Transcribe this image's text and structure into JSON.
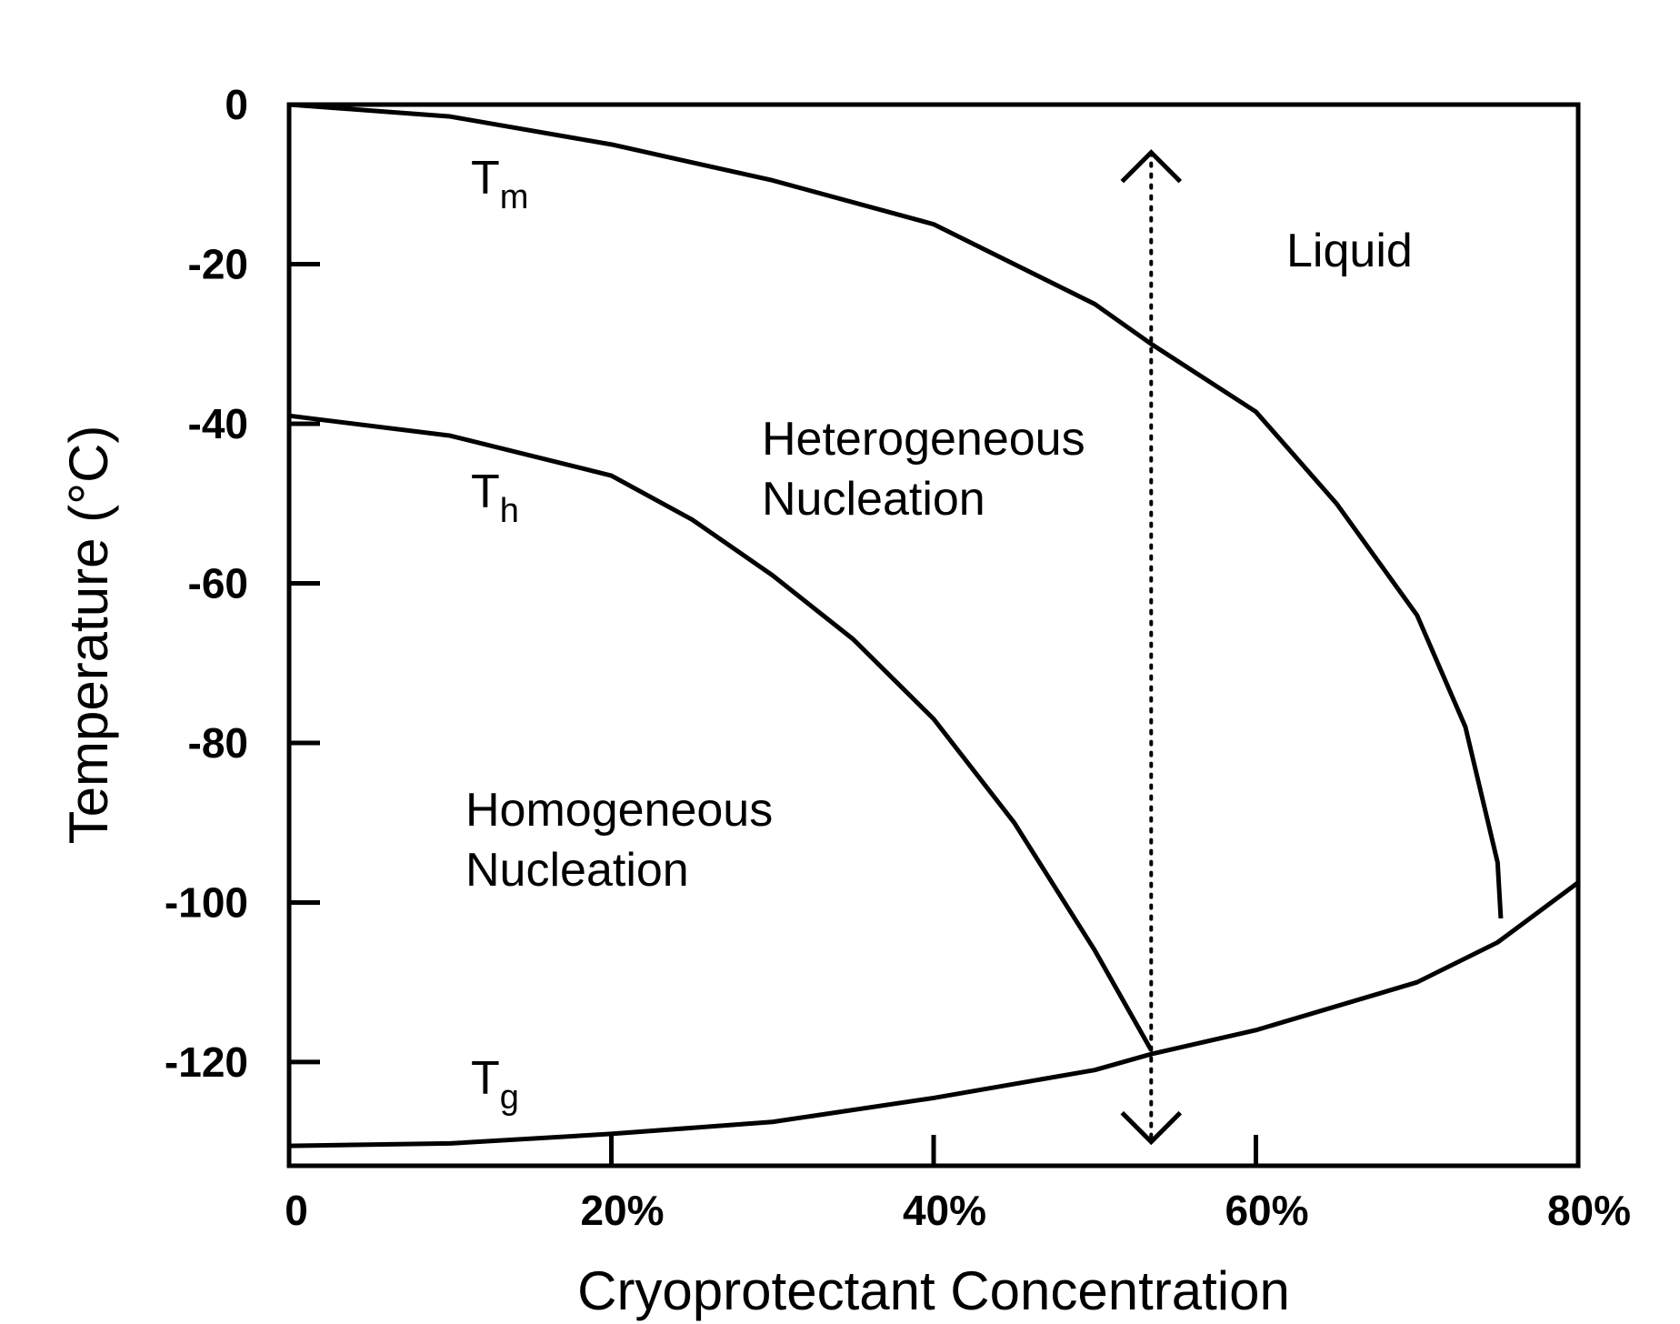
{
  "chart_data": {
    "type": "line",
    "xlabel": "Cryoprotectant Concentration",
    "ylabel": "Temperature (°C)",
    "xlim": [
      0,
      80
    ],
    "ylim": [
      -133,
      0
    ],
    "xticks": [
      0,
      {
        "value": 20,
        "label": "20%"
      },
      {
        "value": 40,
        "label": "40%"
      },
      {
        "value": 60,
        "label": "60%"
      },
      {
        "value": 80,
        "label": "80%"
      }
    ],
    "yticks": [
      0,
      -20,
      -40,
      -60,
      -80,
      -100,
      -120
    ],
    "series": [
      {
        "name": "T",
        "subscript": "m",
        "color": "#000000",
        "x": [
          0,
          10,
          20,
          30,
          40,
          50,
          53.5,
          60,
          65,
          70,
          73,
          75,
          75.2
        ],
        "values": [
          0,
          -1.5,
          -5,
          -9.5,
          -15,
          -25,
          -30,
          -38.5,
          -50,
          -64,
          -78,
          -95,
          -102
        ]
      },
      {
        "name": "T",
        "subscript": "h",
        "color": "#000000",
        "x": [
          0,
          10,
          20,
          25,
          30,
          35,
          40,
          45,
          50,
          53.5
        ],
        "values": [
          -39,
          -41.5,
          -46.5,
          -52,
          -59,
          -67,
          -77,
          -90,
          -106,
          -118.5
        ]
      },
      {
        "name": "T",
        "subscript": "g",
        "color": "#000000",
        "x": [
          0,
          10,
          20,
          30,
          40,
          50,
          53.5,
          60,
          70,
          75,
          80
        ],
        "values": [
          -130.5,
          -130.2,
          -129,
          -127.5,
          -124.5,
          -121,
          -119,
          -116,
          -110,
          -105,
          -97.5
        ]
      }
    ],
    "arrow": {
      "x": 53.5,
      "y": [
        -6,
        -130
      ]
    },
    "annotations": [
      {
        "lines": [
          "Liquid"
        ]
      },
      {
        "lines": [
          "Heterogeneous",
          "Nucleation"
        ]
      },
      {
        "lines": [
          "Homogeneous",
          "Nucleation"
        ]
      }
    ]
  }
}
